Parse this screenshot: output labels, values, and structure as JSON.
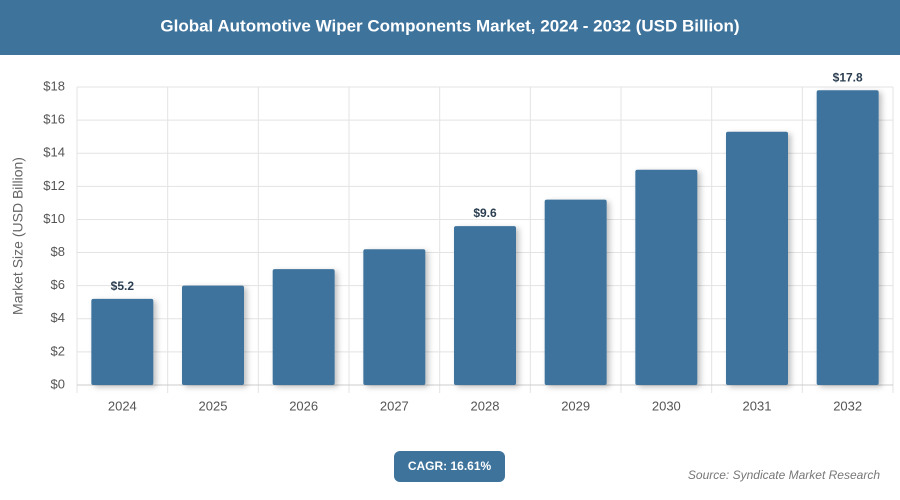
{
  "chart_data": {
    "type": "bar",
    "title": "Global Automotive Wiper Components Market, 2024 - 2032 (USD Billion)",
    "y_label": "Market Size (USD Billion)",
    "categories": [
      "2024",
      "2025",
      "2026",
      "2027",
      "2028",
      "2029",
      "2030",
      "2031",
      "2032"
    ],
    "values": [
      5.2,
      6.0,
      7.0,
      8.2,
      9.6,
      11.2,
      13.0,
      15.3,
      17.8
    ],
    "value_labels": [
      "$5.2",
      null,
      null,
      null,
      "$9.6",
      null,
      null,
      null,
      "$17.8"
    ],
    "color": "#3e739c",
    "ylim": [
      0,
      18
    ],
    "yticks": [
      {
        "value": 0,
        "label": "$0"
      },
      {
        "value": 2,
        "label": "$2"
      },
      {
        "value": 4,
        "label": "$4"
      },
      {
        "value": 6,
        "label": "$6"
      },
      {
        "value": 8,
        "label": "$8"
      },
      {
        "value": 10,
        "label": "$10"
      },
      {
        "value": 12,
        "label": "$12"
      },
      {
        "value": 14,
        "label": "$14"
      },
      {
        "value": 16,
        "label": "$16"
      },
      {
        "value": 18,
        "label": "$18"
      }
    ],
    "grid": true,
    "cagr": "CAGR: 16.61%",
    "source": "Source: Syndicate Market Research"
  }
}
